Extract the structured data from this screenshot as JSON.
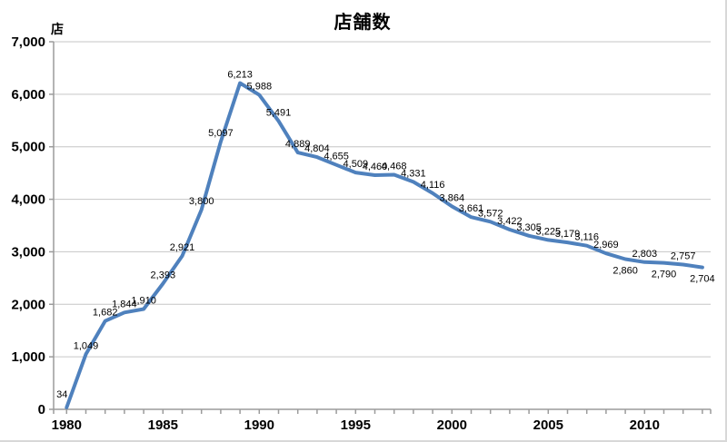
{
  "title": "店舗数",
  "y_axis_unit": "店",
  "chart_data": {
    "type": "line",
    "title": "店舗数",
    "ylabel": "店",
    "xlabel": "",
    "legend": "none",
    "grid": "horizontal",
    "xlim": [
      1980,
      2013
    ],
    "ylim": [
      0,
      7000
    ],
    "x": [
      1980,
      1981,
      1982,
      1983,
      1984,
      1985,
      1986,
      1987,
      1988,
      1989,
      1990,
      1991,
      1992,
      1993,
      1994,
      1995,
      1996,
      1997,
      1998,
      1999,
      2000,
      2001,
      2002,
      2003,
      2004,
      2005,
      2006,
      2007,
      2008,
      2009,
      2010,
      2011,
      2012,
      2013
    ],
    "values": [
      34,
      1049,
      1682,
      1844,
      1910,
      2393,
      2921,
      3800,
      5097,
      6213,
      5988,
      5491,
      4889,
      4804,
      4655,
      4509,
      4460,
      4468,
      4331,
      4116,
      3864,
      3661,
      3572,
      3422,
      3305,
      3225,
      3179,
      3116,
      2969,
      2860,
      2803,
      2790,
      2757,
      2704
    ],
    "data_labels": [
      "34",
      "1,049",
      "1,682",
      "1,844",
      "1,910",
      "2,393",
      "2,921",
      "3,800",
      "5,097",
      "6,213",
      "5,988",
      "5,491",
      "4,889",
      "4,804",
      "4,655",
      "4,509",
      "4,460",
      "4,468",
      "4,331",
      "4,116",
      "3,864",
      "3,661",
      "3,572",
      "3,422",
      "3,305",
      "3,225",
      "3,179",
      "3,116",
      "2,969",
      "2,860",
      "2,803",
      "2,790",
      "2,757",
      "2,704"
    ],
    "labels_below_line_years": [
      2009,
      2011,
      2013
    ],
    "x_ticks": [
      "1980",
      "1985",
      "1990",
      "1995",
      "2000",
      "2005",
      "2010"
    ],
    "y_ticks": [
      "0",
      "1,000",
      "2,000",
      "3,000",
      "4,000",
      "5,000",
      "6,000",
      "7,000"
    ],
    "colors": {
      "line": "#4F81BD",
      "gridline": "#C6C6C6",
      "axis": "#9B9B9B",
      "text": "#000000",
      "chart_border": "#D8D8D8"
    }
  }
}
